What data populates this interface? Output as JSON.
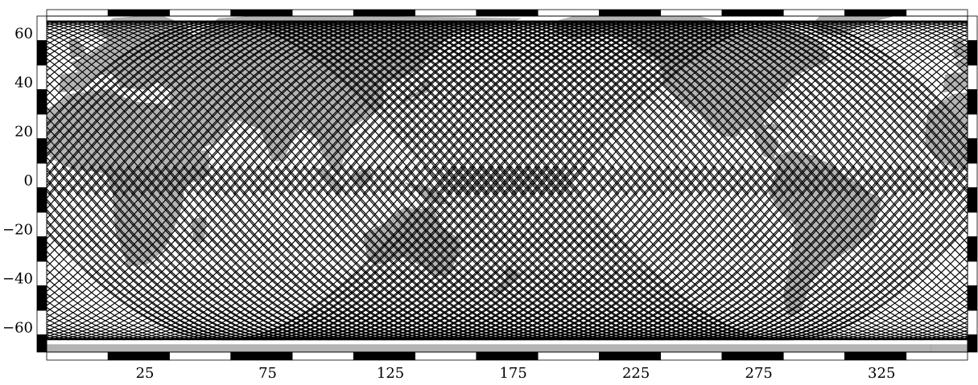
{
  "map": {
    "x_axis": {
      "range": [
        -15,
        360
      ],
      "tick_values": [
        25,
        75,
        125,
        175,
        225,
        275,
        325
      ],
      "tick_labels": [
        "25",
        "75",
        "125",
        "175",
        "225",
        "275",
        "325"
      ]
    },
    "y_axis": {
      "range": [
        -70,
        67
      ],
      "tick_values": [
        60,
        40,
        20,
        0,
        -20,
        -40,
        -60
      ],
      "tick_labels": [
        "60",
        "40",
        "20",
        "0",
        "−20",
        "−40",
        "−60"
      ]
    },
    "frame_segment_step_lon": 25,
    "frame_segment_step_lat": 10,
    "ground_track": {
      "inclination_deg": 65,
      "ascending_passes": 110,
      "descending_passes": 110,
      "line_color": "#000000"
    },
    "colors": {
      "land": "#b4b4b4",
      "land_dark": "#9a9a9a",
      "ocean": "#ffffff",
      "frame_dark": "#000000",
      "frame_light": "#ffffff"
    }
  }
}
